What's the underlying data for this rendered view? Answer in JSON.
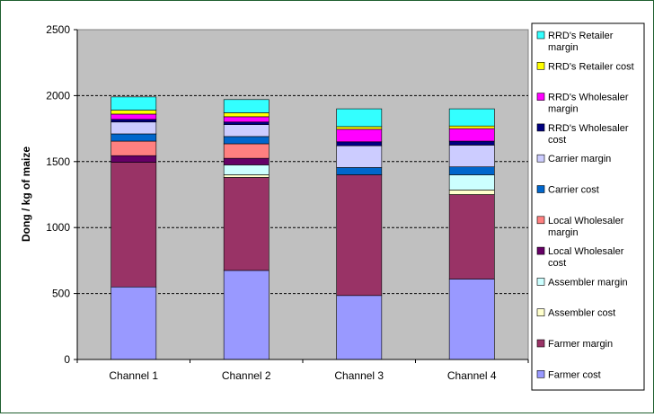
{
  "chart_data": {
    "type": "bar",
    "stacked": true,
    "title": "",
    "xlabel": "",
    "ylabel": "Dong / kg of maize",
    "ylim": [
      0,
      2500
    ],
    "yticks": [
      0,
      500,
      1000,
      1500,
      2000,
      2500
    ],
    "grid": true,
    "legend_position": "right",
    "categories": [
      "Channel 1",
      "Channel 2",
      "Channel 3",
      "Channel 4"
    ],
    "series": [
      {
        "name": "Farmer cost",
        "color": "#9999ff",
        "values": [
          550,
          675,
          485,
          610
        ]
      },
      {
        "name": "Farmer margin",
        "color": "#993366",
        "values": [
          945,
          705,
          915,
          640
        ]
      },
      {
        "name": "Assembler cost",
        "color": "#ffffcc",
        "values": [
          0,
          20,
          0,
          35
        ]
      },
      {
        "name": "Assembler margin",
        "color": "#ccffff",
        "values": [
          0,
          75,
          0,
          115
        ]
      },
      {
        "name": "Local Wholesaler cost",
        "color": "#660066",
        "values": [
          50,
          50,
          0,
          0
        ]
      },
      {
        "name": "Local Wholesaler margin",
        "color": "#ff8080",
        "values": [
          110,
          110,
          0,
          0
        ]
      },
      {
        "name": "Carrier cost",
        "color": "#0066cc",
        "values": [
          55,
          55,
          55,
          60
        ]
      },
      {
        "name": "Carrier margin",
        "color": "#ccccff",
        "values": [
          90,
          90,
          165,
          165
        ]
      },
      {
        "name": "RRD's Wholesale cost",
        "color": "#000080",
        "values": [
          20,
          20,
          30,
          30
        ]
      },
      {
        "name": "RRD's Wholesaler margin",
        "color": "#ff00ff",
        "values": [
          40,
          40,
          95,
          95
        ]
      },
      {
        "name": "RRD's Retailer cost",
        "color": "#ffff00",
        "values": [
          30,
          30,
          20,
          20
        ]
      },
      {
        "name": "RRD's Retailer margin",
        "color": "#33ffff",
        "values": [
          100,
          100,
          135,
          130
        ]
      }
    ],
    "legend_labels": [
      [
        "RRD's Retailer",
        "margin"
      ],
      [
        "RRD's Retailer cost"
      ],
      [
        "RRD's Wholesaler",
        "margin"
      ],
      [
        "RRD's Wholesaler",
        "cost"
      ],
      [
        "Carrier margin"
      ],
      [
        "Carrier cost"
      ],
      [
        "Local Wholesaler",
        "margin"
      ],
      [
        "Local Wholesaler",
        "cost"
      ],
      [
        "Assembler margin"
      ],
      [
        "Assembler cost"
      ],
      [
        "Farmer margin"
      ],
      [
        "Farmer cost"
      ]
    ],
    "colors": {
      "plot_background": "#c0c0c0",
      "frame_border": "#1f5f2f"
    }
  }
}
